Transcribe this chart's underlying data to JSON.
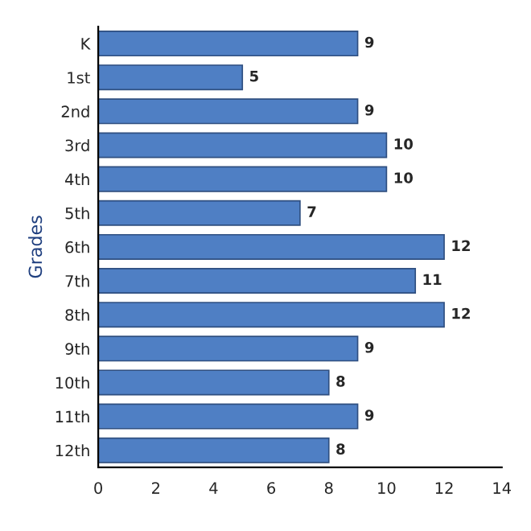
{
  "chart_data": {
    "type": "bar",
    "orientation": "horizontal",
    "ylabel": "Grades",
    "categories": [
      "K",
      "1st",
      "2nd",
      "3rd",
      "4th",
      "5th",
      "6th",
      "7th",
      "8th",
      "9th",
      "10th",
      "11th",
      "12th"
    ],
    "values": [
      9,
      5,
      9,
      10,
      10,
      7,
      12,
      11,
      12,
      9,
      8,
      9,
      8
    ],
    "color": "#4f7fc4",
    "xlim": [
      0,
      14
    ],
    "xticks": [
      0,
      2,
      4,
      6,
      8,
      10,
      12,
      14
    ],
    "data_labels": true,
    "grid": false
  }
}
